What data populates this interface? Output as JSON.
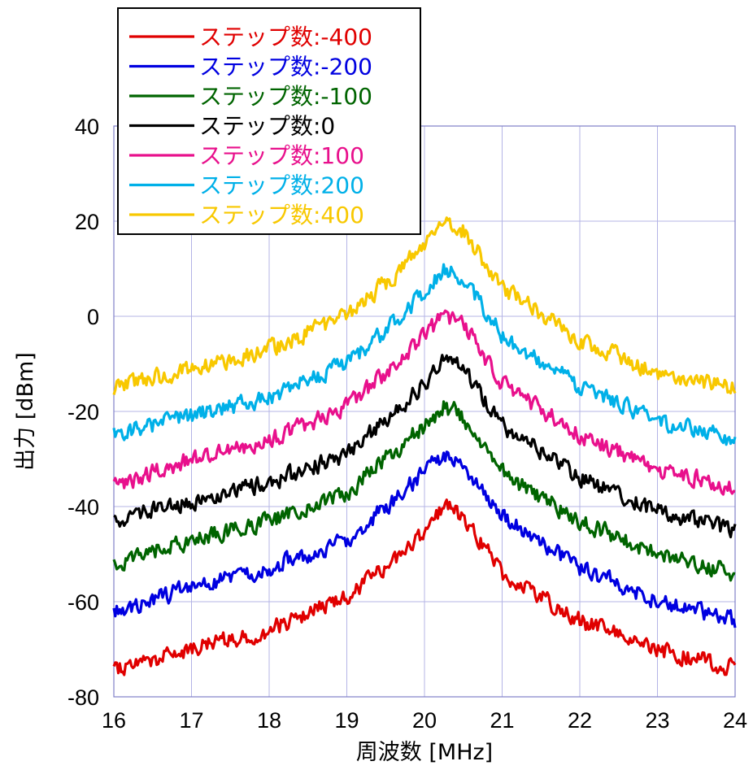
{
  "chart_data": {
    "type": "line",
    "xlabel": "周波数 [MHz]",
    "ylabel": "出力 [dBm]",
    "xlim": [
      16,
      24
    ],
    "ylim": [
      -80,
      40
    ],
    "x_ticks": [
      "16",
      "17",
      "18",
      "19",
      "20",
      "21",
      "22",
      "23",
      "24"
    ],
    "y_ticks": [
      "40",
      "20",
      "0",
      "-20",
      "-40",
      "-60",
      "-80"
    ],
    "grid": true,
    "legend_position": "top-left",
    "peak_x": 20.25,
    "x": [
      16,
      17,
      18,
      19,
      19.5,
      20,
      20.25,
      20.5,
      21,
      22,
      23,
      24
    ],
    "series": [
      {
        "name": "ステップ数:-400",
        "color": "#e00000",
        "values": [
          -74,
          -70,
          -66,
          -59,
          -53,
          -45,
          -40,
          -42,
          -54,
          -64,
          -70,
          -74
        ]
      },
      {
        "name": "ステップ数:-200",
        "color": "#0000e0",
        "values": [
          -62,
          -57,
          -53,
          -47,
          -40,
          -33,
          -29,
          -31,
          -42,
          -53,
          -60,
          -64
        ]
      },
      {
        "name": "ステップ数:-100",
        "color": "#006400",
        "values": [
          -52,
          -47,
          -43,
          -37,
          -30,
          -23,
          -19,
          -21,
          -33,
          -43,
          -50,
          -54
        ]
      },
      {
        "name": "ステップ数:0",
        "color": "#000000",
        "values": [
          -43,
          -39,
          -35,
          -29,
          -22,
          -14,
          -9,
          -11,
          -23,
          -34,
          -41,
          -45
        ]
      },
      {
        "name": "ステップ数:100",
        "color": "#e8108c",
        "values": [
          -36,
          -30,
          -26,
          -19,
          -12,
          -4,
          0,
          -2,
          -14,
          -25,
          -32,
          -36
        ]
      },
      {
        "name": "ステップ数:200",
        "color": "#00b0e8",
        "values": [
          -25,
          -21,
          -17,
          -10,
          -3,
          5,
          10,
          8,
          -4,
          -15,
          -22,
          -26
        ]
      },
      {
        "name": "ステップ数:400",
        "color": "#f8c800",
        "values": [
          -15,
          -11,
          -7,
          0,
          7,
          15,
          21,
          18,
          6,
          -5,
          -12,
          -15
        ]
      }
    ]
  }
}
